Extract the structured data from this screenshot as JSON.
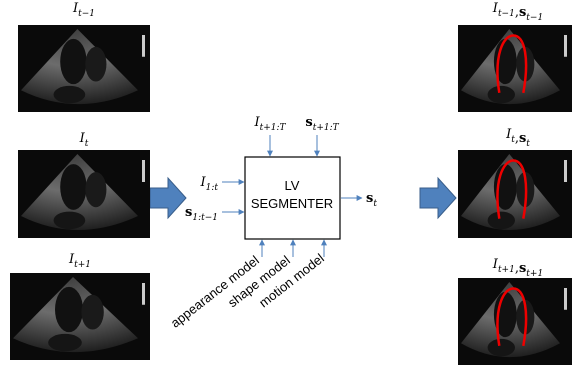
{
  "left_frames": [
    {
      "label": {
        "main": "I",
        "sub": "t−1"
      }
    },
    {
      "label": {
        "main": "I",
        "sub": "t"
      }
    },
    {
      "label": {
        "main": "I",
        "sub": "t+1"
      }
    }
  ],
  "segmenter": {
    "line1": "LV",
    "line2": "SEGMENTER"
  },
  "inputs": [
    {
      "main": "I",
      "sub": "1:t"
    },
    {
      "main": "s",
      "sub": "1:t−1"
    }
  ],
  "future_inputs": [
    {
      "main": "I",
      "sub": "t+1:T"
    },
    {
      "main": "s",
      "sub": "t+1:T"
    }
  ],
  "output": {
    "main": "s",
    "sub": "t"
  },
  "models": [
    "appearance model",
    "shape model",
    "motion model"
  ],
  "label_separator": ",",
  "right_frames": [
    {
      "label": [
        {
          "main": "I",
          "sub": "t−1"
        },
        {
          "main": "s",
          "sub": "t−1"
        }
      ]
    },
    {
      "label": [
        {
          "main": "I",
          "sub": "t"
        },
        {
          "main": "s",
          "sub": "t"
        }
      ]
    },
    {
      "label": [
        {
          "main": "I",
          "sub": "t+1"
        },
        {
          "main": "s",
          "sub": "t+1"
        }
      ]
    }
  ]
}
